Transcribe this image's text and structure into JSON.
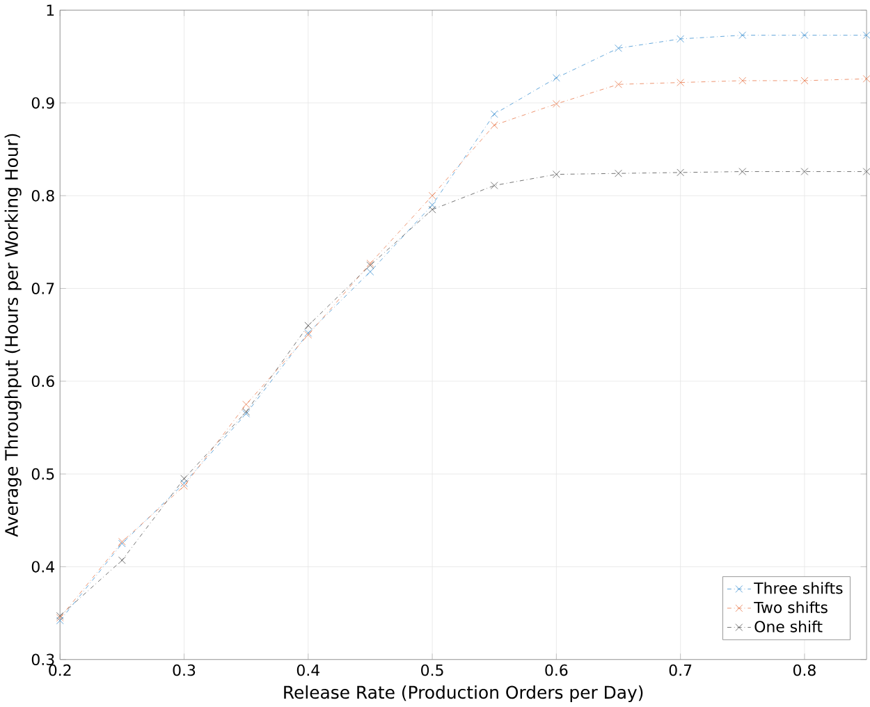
{
  "chart_data": {
    "type": "line",
    "xlabel": "Release Rate (Production Orders per Day)",
    "ylabel": "Average Throughput (Hours per Working Hour)",
    "x": [
      0.2,
      0.25,
      0.3,
      0.35,
      0.4,
      0.45,
      0.5,
      0.55,
      0.6,
      0.65,
      0.7,
      0.75,
      0.8,
      0.85
    ],
    "series": [
      {
        "name": "Three shifts",
        "color": "#3a8fd0",
        "values": [
          0.342,
          0.425,
          0.49,
          0.565,
          0.652,
          0.718,
          0.79,
          0.888,
          0.927,
          0.959,
          0.969,
          0.973,
          0.973,
          0.973
        ]
      },
      {
        "name": "Two shifts",
        "color": "#e8784a",
        "values": [
          0.345,
          0.427,
          0.487,
          0.575,
          0.65,
          0.727,
          0.8,
          0.876,
          0.899,
          0.92,
          0.922,
          0.924,
          0.924,
          0.926
        ]
      },
      {
        "name": "One shift",
        "color": "#505050",
        "values": [
          0.347,
          0.407,
          0.495,
          0.567,
          0.66,
          0.725,
          0.785,
          0.811,
          0.823,
          0.824,
          0.825,
          0.826,
          0.826,
          0.826
        ]
      }
    ],
    "xlim": [
      0.2,
      0.85
    ],
    "ylim": [
      0.3,
      1
    ],
    "xticks": [
      0.2,
      0.3,
      0.4,
      0.5,
      0.6,
      0.7,
      0.8
    ],
    "yticks": [
      0.3,
      0.4,
      0.5,
      0.6,
      0.7,
      0.8,
      0.9,
      1
    ],
    "grid": true,
    "legend": "bottom right",
    "marker": "cross",
    "line_style": "dashdot"
  }
}
